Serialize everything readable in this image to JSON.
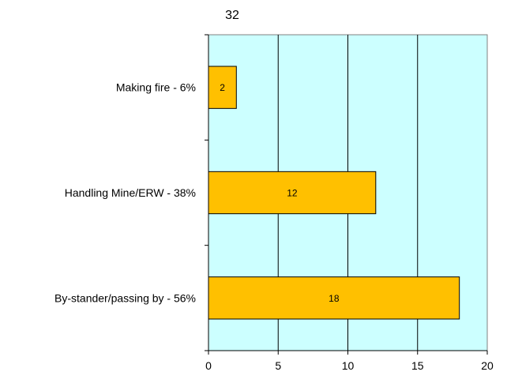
{
  "chart_data": {
    "type": "bar",
    "orientation": "horizontal",
    "title": "32",
    "categories": [
      "Making fire - 6%",
      "Handling Mine/ERW - 38%",
      "By-stander/passing by - 56%"
    ],
    "values": [
      2,
      12,
      18
    ],
    "data_labels": [
      "2",
      "12",
      "18"
    ],
    "xlim": [
      0,
      20
    ],
    "x_ticks": [
      "0",
      "5",
      "10",
      "15",
      "20"
    ],
    "xlabel": "",
    "ylabel": "",
    "grid": "vertical",
    "legend": "none",
    "colors": {
      "plot_background": "#ccffff",
      "bar_fill": "#ffc000",
      "bar_stroke": "#000000",
      "axis": "#000000"
    }
  }
}
